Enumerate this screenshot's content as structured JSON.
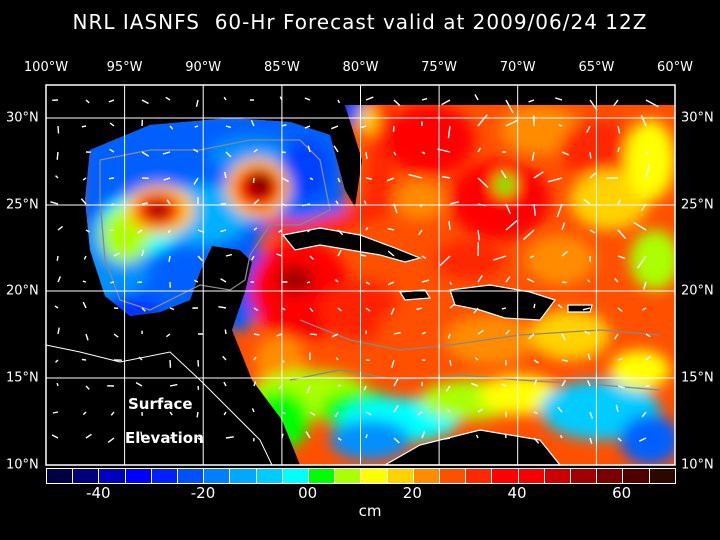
{
  "title": "NRL IASNFS  60-Hr Forecast valid at 2009/06/24 12Z",
  "longitude_labels": [
    "100°W",
    "95°W",
    "90°W",
    "85°W",
    "80°W",
    "75°W",
    "70°W",
    "65°W",
    "60°W"
  ],
  "latitude_labels_left": [
    "30°N",
    "25°N",
    "20°N",
    "15°N",
    "10°N"
  ],
  "latitude_labels_right": [
    "30°N",
    "25°N",
    "20°N",
    "15°N",
    "10°N"
  ],
  "overlay_label_1": "Surface",
  "overlay_label_2": "Elevation",
  "colorbar": {
    "tick_labels": [
      "-40",
      "-20",
      "00",
      "20",
      "40",
      "60"
    ],
    "unit": "cm",
    "range": [
      -50,
      70
    ],
    "step": 5,
    "colors": [
      "#000044",
      "#00007c",
      "#0000c0",
      "#0000ff",
      "#0020ff",
      "#0050ff",
      "#0080ff",
      "#00a8ff",
      "#00ccff",
      "#00ffff",
      "#00ff00",
      "#aaff00",
      "#ffff00",
      "#ffd200",
      "#ff8c00",
      "#ff5000",
      "#ff2800",
      "#ff0000",
      "#f80000",
      "#cc0000",
      "#a00000",
      "#780000",
      "#500000",
      "#2a0800"
    ]
  }
}
